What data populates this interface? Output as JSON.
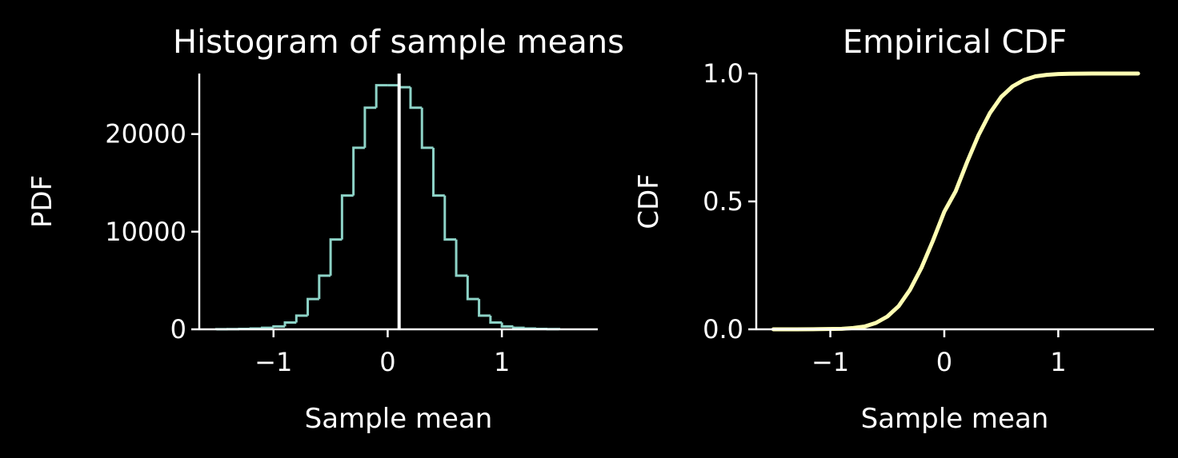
{
  "colors": {
    "background": "#000000",
    "axes": "#ffffff",
    "histogram": "#8dd3c7",
    "cdf": "#ffffb3",
    "mean_line": "#ffffff"
  },
  "chart_data": [
    {
      "type": "bar",
      "title": "Histogram of sample means",
      "xlabel": "Sample mean",
      "ylabel": "PDF",
      "xlim": [
        -1.65,
        1.84
      ],
      "ylim": [
        0,
        26200
      ],
      "xticks": [
        -1,
        0,
        1
      ],
      "xtick_labels": [
        "−1",
        "0",
        "1"
      ],
      "yticks": [
        0,
        10000,
        20000
      ],
      "ytick_labels": [
        "0",
        "10000",
        "20000"
      ],
      "bin_edges": [
        -1.5,
        -1.4,
        -1.3,
        -1.2,
        -1.1,
        -1.0,
        -0.9,
        -0.8,
        -0.7,
        -0.6,
        -0.5,
        -0.4,
        -0.3,
        -0.2,
        -0.1,
        0.0,
        0.1,
        0.2,
        0.3,
        0.4,
        0.5,
        0.6,
        0.7,
        0.8,
        0.9,
        1.0,
        1.1,
        1.2,
        1.3,
        1.4,
        1.5
      ],
      "values": [
        10,
        20,
        40,
        80,
        150,
        300,
        700,
        1400,
        3100,
        5500,
        9200,
        13700,
        18600,
        22700,
        25000,
        25000,
        24800,
        22700,
        18600,
        13700,
        9200,
        5500,
        3100,
        1400,
        700,
        300,
        150,
        80,
        40,
        20
      ],
      "grid": false,
      "vline": 0.1
    },
    {
      "type": "line",
      "title": "Empirical CDF",
      "xlabel": "Sample mean",
      "ylabel": "CDF",
      "xlim": [
        -1.65,
        1.84
      ],
      "ylim": [
        0,
        1.0
      ],
      "xticks": [
        -1,
        0,
        1
      ],
      "xtick_labels": [
        "−1",
        "0",
        "1"
      ],
      "yticks": [
        0,
        0.5,
        1.0
      ],
      "ytick_labels": [
        "0.0",
        "0.5",
        "1.0"
      ],
      "x": [
        -1.5,
        -1.3,
        -1.1,
        -0.9,
        -0.8,
        -0.7,
        -0.6,
        -0.5,
        -0.4,
        -0.3,
        -0.2,
        -0.1,
        0.0,
        0.1,
        0.2,
        0.3,
        0.4,
        0.5,
        0.6,
        0.7,
        0.8,
        0.9,
        1.0,
        1.1,
        1.3,
        1.5,
        1.7
      ],
      "y": [
        0.0,
        0.0001,
        0.0005,
        0.002,
        0.005,
        0.011,
        0.025,
        0.05,
        0.091,
        0.155,
        0.241,
        0.346,
        0.46,
        0.54,
        0.654,
        0.759,
        0.845,
        0.909,
        0.95,
        0.975,
        0.989,
        0.995,
        0.998,
        0.9995,
        0.9999,
        1.0,
        1.0
      ],
      "grid": false
    }
  ]
}
